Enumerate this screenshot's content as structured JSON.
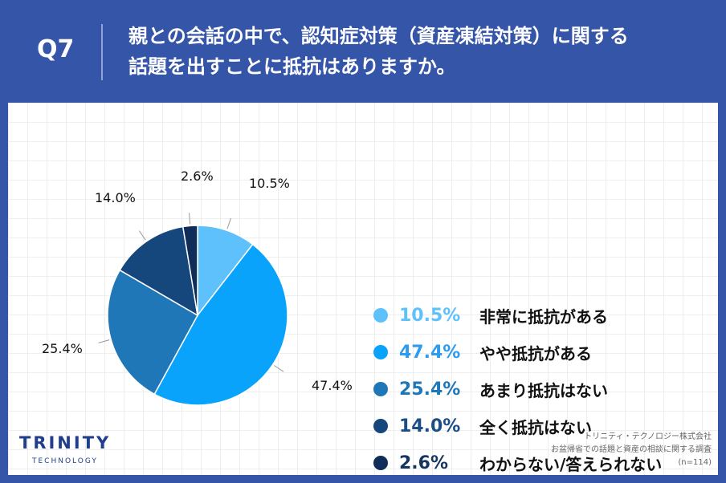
{
  "header": {
    "q_label": "Q7",
    "question_line1": "親との会話の中で、認知症対策（資産凍結対策）に関する",
    "question_line2": "話題を出すことに抵抗はありますか。"
  },
  "chart_data": {
    "type": "pie",
    "slices": [
      {
        "label": "非常に抵抗がある",
        "value": 10.5,
        "value_text": "10.5%",
        "color": "#5ec1fb"
      },
      {
        "label": "やや抵抗がある",
        "value": 47.4,
        "value_text": "47.4%",
        "color": "#09a3fc"
      },
      {
        "label": "あまり抵抗はない",
        "value": 25.4,
        "value_text": "25.4%",
        "color": "#1f77b8"
      },
      {
        "label": "全く抵抗はない",
        "value": 14.0,
        "value_text": "14.0%",
        "color": "#16477c"
      },
      {
        "label": "わからない/答えられない",
        "value": 2.6,
        "value_text": "2.6%",
        "color": "#0f2d58"
      }
    ]
  },
  "legend_pct_colors": [
    "#5ec1fb",
    "#2d9bf0",
    "#1f77b8",
    "#1b4e86",
    "#15365f"
  ],
  "logo": {
    "main": "TRINITY",
    "sub": "TECHNOLOGY"
  },
  "source": {
    "line1": "トリニティ・テクノロジー株式会社",
    "line2": "お盆帰省での話題と資産の相談に関する調査",
    "line3": "(n=114)"
  }
}
